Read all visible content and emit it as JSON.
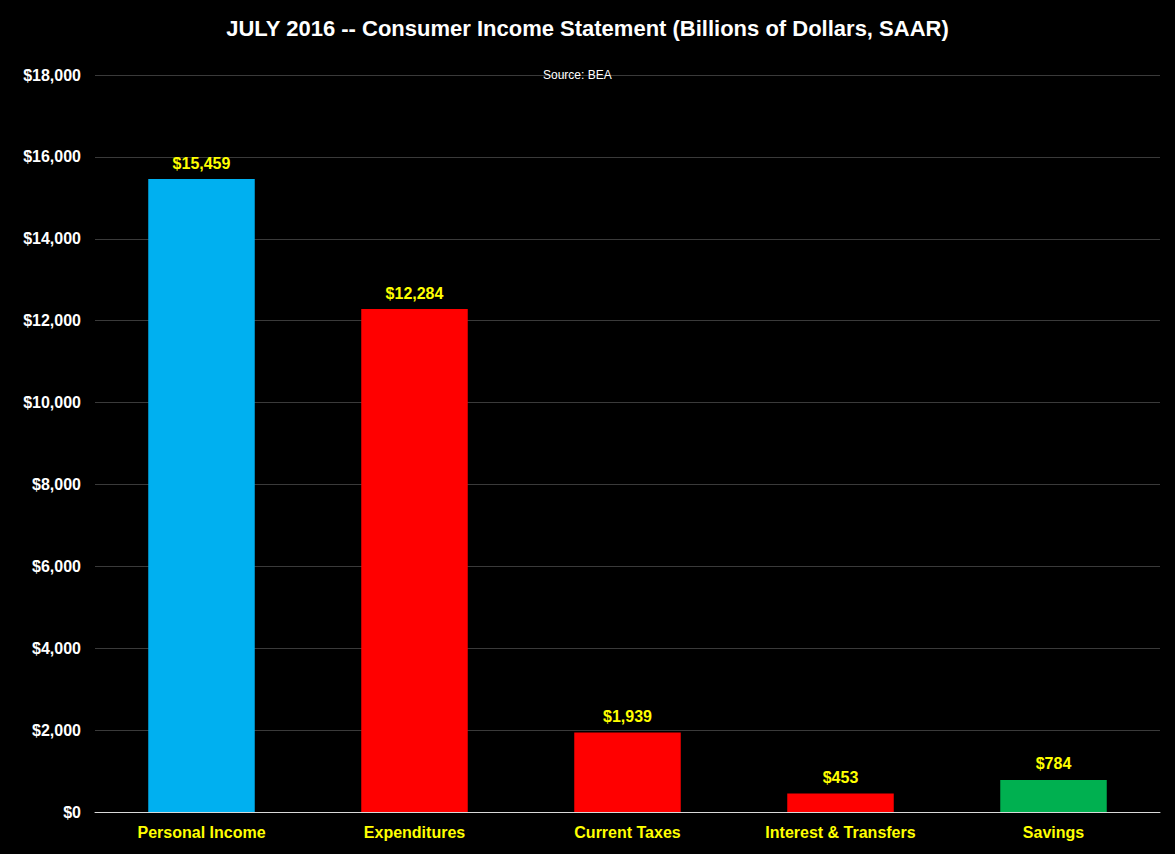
{
  "chart_data": {
    "type": "bar",
    "title": "JULY 2016 -- Consumer Income Statement (Billions of Dollars, SAAR)",
    "subtitle": "Source: BEA",
    "categories": [
      "Personal Income",
      "Expenditures",
      "Current Taxes",
      "Interest & Transfers",
      "Savings"
    ],
    "values": [
      15459,
      12284,
      1939,
      453,
      784
    ],
    "value_labels": [
      "$15,459",
      "$12,284",
      "$1,939",
      "$453",
      "$784"
    ],
    "colors": [
      "#00b0f0",
      "#ff0000",
      "#ff0000",
      "#ff0000",
      "#00b050"
    ],
    "ylim": [
      0,
      18000
    ],
    "yticks": [
      {
        "value": 0,
        "label": "$0"
      },
      {
        "value": 2000,
        "label": "$2,000"
      },
      {
        "value": 4000,
        "label": "$4,000"
      },
      {
        "value": 6000,
        "label": "$6,000"
      },
      {
        "value": 8000,
        "label": "$8,000"
      },
      {
        "value": 10000,
        "label": "$10,000"
      },
      {
        "value": 12000,
        "label": "$12,000"
      },
      {
        "value": 14000,
        "label": "$14,000"
      },
      {
        "value": 16000,
        "label": "$16,000"
      },
      {
        "value": 18000,
        "label": "$18,000"
      }
    ],
    "grid": true,
    "data_labels": true
  }
}
